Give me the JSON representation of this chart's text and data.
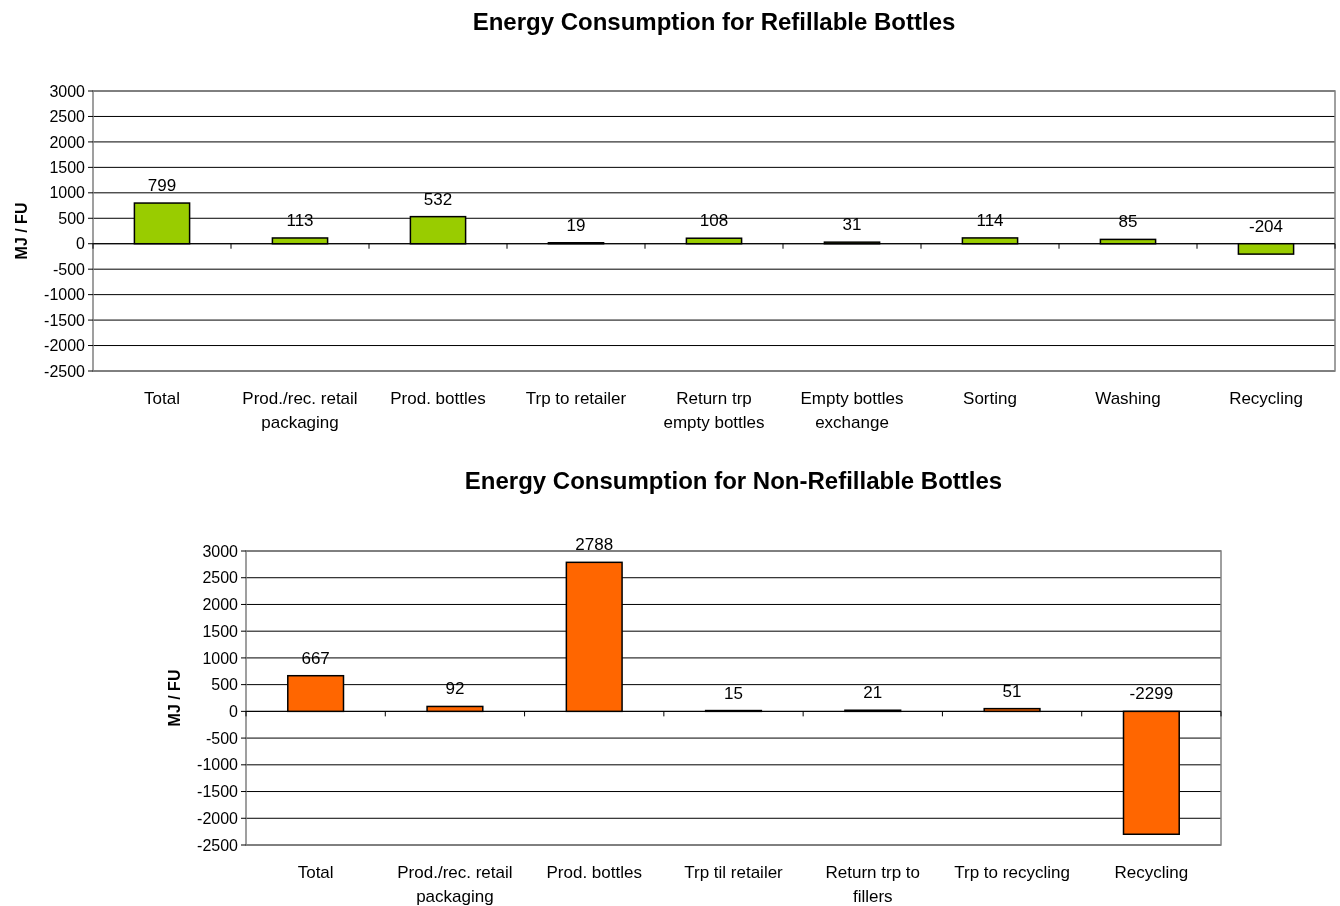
{
  "chart_data": [
    {
      "type": "bar",
      "title": "Energy Consumption for Refillable Bottles",
      "ylabel": "MJ / FU",
      "categories": [
        "Total",
        "Prod./rec. retail packaging",
        "Prod. bottles",
        "Trp to retailer",
        "Return trp empty bottles",
        "Empty bottles exchange",
        "Sorting",
        "Washing",
        "Recycling"
      ],
      "values": [
        799,
        113,
        532,
        19,
        108,
        31,
        114,
        85,
        -204
      ],
      "color": "#99cc00",
      "ylim": [
        -2500,
        3000
      ],
      "yticks": [
        -2500,
        -2000,
        -1500,
        -1000,
        -500,
        0,
        500,
        1000,
        1500,
        2000,
        2500,
        3000
      ],
      "grid": "y",
      "data_labels": true
    },
    {
      "type": "bar",
      "title": "Energy Consumption for Non-Refillable Bottles",
      "ylabel": "MJ / FU",
      "categories": [
        "Total",
        "Prod./rec. retail packaging",
        "Prod. bottles",
        "Trp til retailer",
        "Return trp to fillers",
        "Trp to recycling",
        "Recycling"
      ],
      "values": [
        667,
        92,
        2788,
        15,
        21,
        51,
        -2299
      ],
      "color": "#ff6600",
      "ylim": [
        -2500,
        3000
      ],
      "yticks": [
        -2500,
        -2000,
        -1500,
        -1000,
        -500,
        0,
        500,
        1000,
        1500,
        2000,
        2500,
        3000
      ],
      "grid": "y",
      "data_labels": true
    }
  ]
}
